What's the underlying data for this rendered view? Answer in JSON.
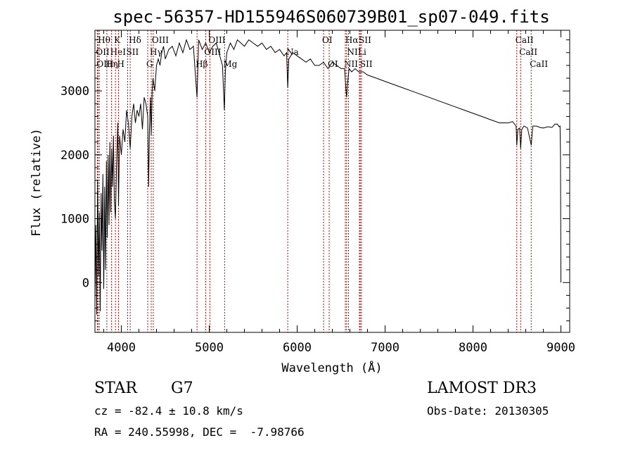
{
  "chart_data": {
    "type": "line",
    "title": "spec-56357-HD155946S060739B01_sp07-049.fits",
    "xlabel": "Wavelength (Å)",
    "ylabel": "Flux (relative)",
    "xlim": [
      3700,
      9100
    ],
    "ylim": [
      -780,
      3950
    ],
    "xticks": [
      4000,
      5000,
      6000,
      7000,
      8000,
      9000
    ],
    "yticks": [
      0,
      1000,
      2000,
      3000
    ],
    "grid": false,
    "line_color": "#000000",
    "marker_color": "#cc0000",
    "series": [
      {
        "name": "spectrum",
        "x": [
          3700,
          3710,
          3720,
          3730,
          3740,
          3750,
          3760,
          3770,
          3780,
          3790,
          3800,
          3810,
          3820,
          3830,
          3840,
          3850,
          3860,
          3870,
          3880,
          3890,
          3900,
          3910,
          3920,
          3933,
          3945,
          3960,
          3968,
          3980,
          4000,
          4020,
          4040,
          4060,
          4080,
          4101,
          4120,
          4140,
          4160,
          4180,
          4200,
          4220,
          4240,
          4260,
          4280,
          4300,
          4310,
          4320,
          4330,
          4340,
          4350,
          4360,
          4380,
          4400,
          4420,
          4440,
          4460,
          4480,
          4500,
          4540,
          4580,
          4620,
          4660,
          4700,
          4740,
          4780,
          4820,
          4861,
          4880,
          4920,
          4960,
          5000,
          5040,
          5080,
          5120,
          5150,
          5172,
          5183,
          5200,
          5240,
          5280,
          5320,
          5360,
          5400,
          5450,
          5500,
          5550,
          5600,
          5650,
          5700,
          5750,
          5800,
          5850,
          5880,
          5893,
          5905,
          5950,
          6000,
          6050,
          6100,
          6150,
          6200,
          6250,
          6300,
          6350,
          6400,
          6450,
          6500,
          6540,
          6555,
          6563,
          6572,
          6590,
          6620,
          6660,
          6700,
          6750,
          6800,
          6900,
          7000,
          7100,
          7200,
          7300,
          7400,
          7500,
          7600,
          7700,
          7800,
          7900,
          8000,
          8100,
          8200,
          8300,
          8400,
          8450,
          8490,
          8498,
          8510,
          8530,
          8542,
          8555,
          8580,
          8620,
          8662,
          8680,
          8720,
          8760,
          8800,
          8850,
          8900,
          8930,
          8960,
          8980,
          8990,
          8995,
          9000
        ],
        "y": [
          -300,
          900,
          -500,
          1600,
          100,
          1100,
          -450,
          1400,
          500,
          1700,
          -100,
          1500,
          200,
          1900,
          700,
          2000,
          900,
          2200,
          1100,
          2100,
          1500,
          2300,
          1300,
          1000,
          1800,
          2500,
          1200,
          2300,
          2000,
          2400,
          2200,
          2700,
          2500,
          2100,
          2600,
          2800,
          2500,
          2700,
          2600,
          2800,
          2400,
          2900,
          2800,
          2600,
          1500,
          2400,
          2900,
          2300,
          3000,
          3200,
          3000,
          3400,
          3500,
          3400,
          3600,
          3700,
          3500,
          3650,
          3700,
          3550,
          3750,
          3600,
          3800,
          3650,
          3700,
          2900,
          3800,
          3650,
          3750,
          3600,
          3700,
          3750,
          3550,
          3400,
          2700,
          3300,
          3600,
          3750,
          3650,
          3800,
          3750,
          3700,
          3800,
          3750,
          3700,
          3750,
          3650,
          3700,
          3600,
          3650,
          3550,
          3600,
          3050,
          3500,
          3600,
          3550,
          3500,
          3450,
          3500,
          3400,
          3400,
          3450,
          3350,
          3450,
          3400,
          3350,
          3350,
          3000,
          2900,
          3100,
          3350,
          3300,
          3350,
          3300,
          3300,
          3250,
          3200,
          3150,
          3100,
          3050,
          3000,
          2950,
          2900,
          2850,
          2800,
          2750,
          2700,
          2650,
          2600,
          2550,
          2500,
          2500,
          2520,
          2450,
          2150,
          2400,
          2420,
          2100,
          2400,
          2450,
          2420,
          2150,
          2450,
          2450,
          2430,
          2420,
          2440,
          2430,
          2480,
          2480,
          2440,
          2450,
          2000,
          0
        ]
      }
    ],
    "line_markers": [
      {
        "wavelength": 3750,
        "label": "Hθ",
        "row": 1
      },
      {
        "wavelength": 3727,
        "label": "OII",
        "row": 2
      },
      {
        "wavelength": 3735,
        "label": "OIII",
        "row": 3
      },
      {
        "wavelength": 3835,
        "label": "Hη",
        "row": 3
      },
      {
        "wavelength": 3889,
        "label": "HeI",
        "row": 2
      },
      {
        "wavelength": 3933,
        "label": "K",
        "row": 1
      },
      {
        "wavelength": 3968,
        "label": "H",
        "row": 3
      },
      {
        "wavelength": 4072,
        "label": "SII",
        "row": 2
      },
      {
        "wavelength": 4101,
        "label": "Hδ",
        "row": 1
      },
      {
        "wavelength": 4300,
        "label": "G",
        "row": 3
      },
      {
        "wavelength": 4340,
        "label": "Hγ",
        "row": 2
      },
      {
        "wavelength": 4363,
        "label": "OIII",
        "row": 1
      },
      {
        "wavelength": 4861,
        "label": "Hβ",
        "row": 3
      },
      {
        "wavelength": 4959,
        "label": "OIII",
        "row": 2
      },
      {
        "wavelength": 5007,
        "label": "OIII",
        "row": 1
      },
      {
        "wavelength": 5175,
        "label": "Mg",
        "row": 3
      },
      {
        "wavelength": 5893,
        "label": "Na",
        "row": 2
      },
      {
        "wavelength": 6300,
        "label": "OI",
        "row": 1
      },
      {
        "wavelength": 6364,
        "label": "OI",
        "row": 3
      },
      {
        "wavelength": 6548,
        "label": "NII",
        "row": 3
      },
      {
        "wavelength": 6563,
        "label": "Hα",
        "row": 1
      },
      {
        "wavelength": 6584,
        "label": "NII",
        "row": 2
      },
      {
        "wavelength": 6708,
        "label": "Li",
        "row": 2
      },
      {
        "wavelength": 6717,
        "label": "SII",
        "row": 1
      },
      {
        "wavelength": 6731,
        "label": "SII",
        "row": 3
      },
      {
        "wavelength": 8498,
        "label": "CaII",
        "row": 1
      },
      {
        "wavelength": 8542,
        "label": "CaII",
        "row": 2
      },
      {
        "wavelength": 8662,
        "label": "CaII",
        "row": 3
      }
    ]
  },
  "info": {
    "object_type": "STAR",
    "subclass": "G7",
    "redshift": "cz = -82.4 ± 10.8 km/s",
    "coords": "RA = 240.55998, DEC =  -7.98766",
    "survey": "LAMOST DR3",
    "obs_date": "Obs-Date: 20130305"
  }
}
